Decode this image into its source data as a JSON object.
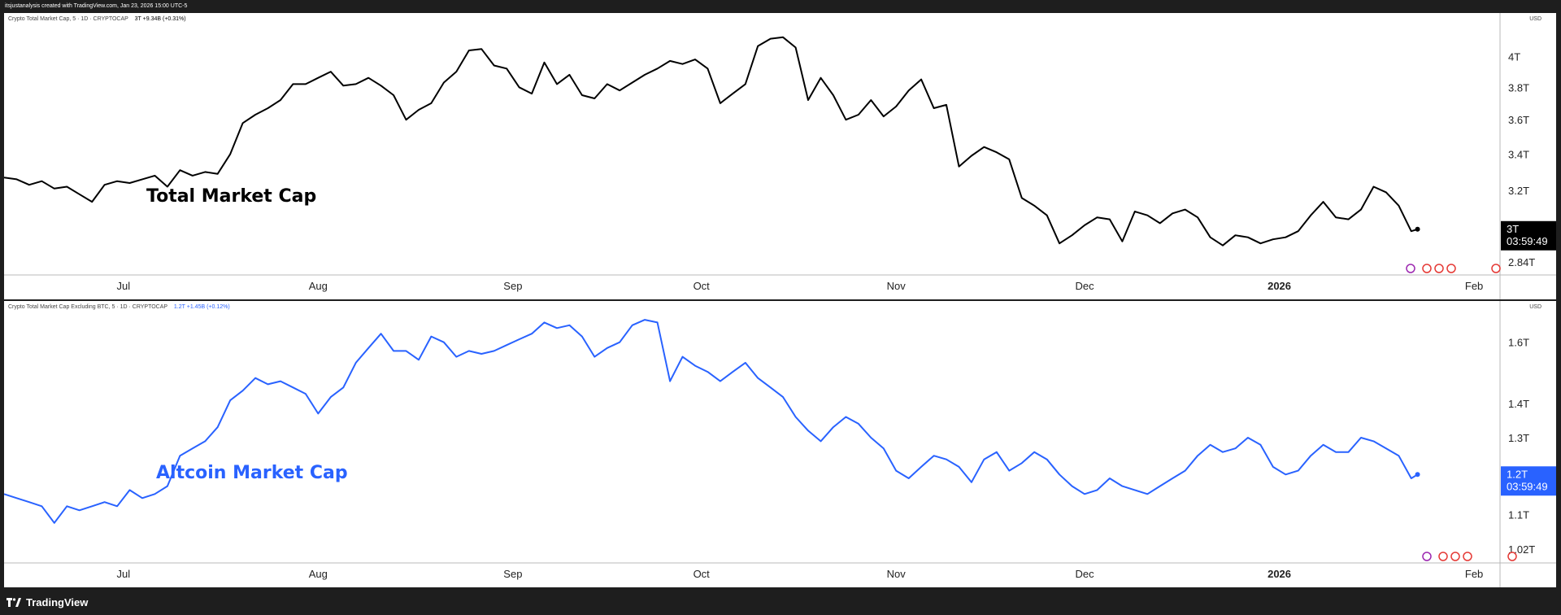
{
  "header": {
    "credit": "itsjustanalysis created with TradingView.com, Jan 23, 2026 15:00 UTC-5"
  },
  "footer": {
    "brand": "TradingView"
  },
  "colors": {
    "panel1_line": "#000000",
    "panel2_line": "#2962ff",
    "badge1": "#000000",
    "badge2": "#2962ff"
  },
  "panels": [
    {
      "legend_title": "Crypto Total Market Cap, 5 · 1D · CRYPTOCAP",
      "legend_value": "3T",
      "legend_change": "+9.34B (+0.31%)",
      "currency": "USD",
      "overlay_label": "Total Market Cap",
      "price_badge": {
        "value": "3T",
        "countdown": "03:59:49"
      },
      "y_ticks": [
        "4T",
        "3.8T",
        "3.6T",
        "3.4T",
        "3.2T",
        "2.84T"
      ],
      "x_ticks": [
        "Jul",
        "Aug",
        "Sep",
        "Oct",
        "Nov",
        "Dec",
        "2026",
        "Feb"
      ]
    },
    {
      "legend_title": "Crypto Total Market Cap Excluding BTC, 5 · 1D · CRYPTOCAP",
      "legend_value": "1.2T",
      "legend_change": "+1.45B (+0.12%)",
      "currency": "USD",
      "overlay_label": "Altcoin Market Cap",
      "price_badge": {
        "value": "1.2T",
        "countdown": "03:59:49"
      },
      "y_ticks": [
        "1.6T",
        "1.4T",
        "1.3T",
        "1.2T",
        "1.1T",
        "1.02T"
      ],
      "x_ticks": [
        "Jul",
        "Aug",
        "Sep",
        "Oct",
        "Nov",
        "Dec",
        "2026",
        "Feb"
      ]
    }
  ],
  "chart_data": [
    {
      "type": "line",
      "title": "Crypto Total Market Cap",
      "ylabel": "USD",
      "y_scale": "log",
      "x_range": [
        "2025-06-12",
        "2026-02-05"
      ],
      "ylim": [
        2.78,
        4.3
      ],
      "y_unit": "T",
      "series": [
        {
          "name": "Crypto Total Market Cap",
          "points": [
            [
              "2025-06-12",
              3.27
            ],
            [
              "2025-06-14",
              3.26
            ],
            [
              "2025-06-16",
              3.23
            ],
            [
              "2025-06-18",
              3.25
            ],
            [
              "2025-06-20",
              3.21
            ],
            [
              "2025-06-22",
              3.22
            ],
            [
              "2025-06-24",
              3.18
            ],
            [
              "2025-06-26",
              3.14
            ],
            [
              "2025-06-28",
              3.23
            ],
            [
              "2025-06-30",
              3.25
            ],
            [
              "2025-07-02",
              3.24
            ],
            [
              "2025-07-04",
              3.26
            ],
            [
              "2025-07-06",
              3.28
            ],
            [
              "2025-07-08",
              3.22
            ],
            [
              "2025-07-10",
              3.31
            ],
            [
              "2025-07-12",
              3.28
            ],
            [
              "2025-07-14",
              3.3
            ],
            [
              "2025-07-16",
              3.29
            ],
            [
              "2025-07-18",
              3.4
            ],
            [
              "2025-07-20",
              3.58
            ],
            [
              "2025-07-22",
              3.63
            ],
            [
              "2025-07-24",
              3.67
            ],
            [
              "2025-07-26",
              3.72
            ],
            [
              "2025-07-28",
              3.82
            ],
            [
              "2025-07-30",
              3.82
            ],
            [
              "2025-08-01",
              3.86
            ],
            [
              "2025-08-03",
              3.9
            ],
            [
              "2025-08-05",
              3.81
            ],
            [
              "2025-08-07",
              3.82
            ],
            [
              "2025-08-09",
              3.86
            ],
            [
              "2025-08-11",
              3.81
            ],
            [
              "2025-08-13",
              3.75
            ],
            [
              "2025-08-15",
              3.6
            ],
            [
              "2025-08-17",
              3.66
            ],
            [
              "2025-08-19",
              3.7
            ],
            [
              "2025-08-21",
              3.83
            ],
            [
              "2025-08-23",
              3.9
            ],
            [
              "2025-08-25",
              4.04
            ],
            [
              "2025-08-27",
              4.05
            ],
            [
              "2025-08-29",
              3.94
            ],
            [
              "2025-08-31",
              3.92
            ],
            [
              "2025-09-02",
              3.8
            ],
            [
              "2025-09-04",
              3.76
            ],
            [
              "2025-09-06",
              3.96
            ],
            [
              "2025-09-08",
              3.82
            ],
            [
              "2025-09-10",
              3.88
            ],
            [
              "2025-09-12",
              3.75
            ],
            [
              "2025-09-14",
              3.73
            ],
            [
              "2025-09-16",
              3.82
            ],
            [
              "2025-09-18",
              3.78
            ],
            [
              "2025-09-20",
              3.83
            ],
            [
              "2025-09-22",
              3.88
            ],
            [
              "2025-09-24",
              3.92
            ],
            [
              "2025-09-26",
              3.97
            ],
            [
              "2025-09-28",
              3.95
            ],
            [
              "2025-09-30",
              3.98
            ],
            [
              "2025-10-02",
              3.92
            ],
            [
              "2025-10-04",
              3.7
            ],
            [
              "2025-10-06",
              3.76
            ],
            [
              "2025-10-08",
              3.82
            ],
            [
              "2025-10-10",
              4.07
            ],
            [
              "2025-10-12",
              4.12
            ],
            [
              "2025-10-14",
              4.13
            ],
            [
              "2025-10-16",
              4.06
            ],
            [
              "2025-10-18",
              3.72
            ],
            [
              "2025-10-20",
              3.86
            ],
            [
              "2025-10-22",
              3.75
            ],
            [
              "2025-10-24",
              3.6
            ],
            [
              "2025-10-26",
              3.63
            ],
            [
              "2025-10-28",
              3.72
            ],
            [
              "2025-10-30",
              3.62
            ],
            [
              "2025-11-01",
              3.68
            ],
            [
              "2025-11-03",
              3.78
            ],
            [
              "2025-11-05",
              3.85
            ],
            [
              "2025-11-07",
              3.67
            ],
            [
              "2025-11-09",
              3.69
            ],
            [
              "2025-11-11",
              3.33
            ],
            [
              "2025-11-13",
              3.39
            ],
            [
              "2025-11-15",
              3.44
            ],
            [
              "2025-11-17",
              3.41
            ],
            [
              "2025-11-19",
              3.37
            ],
            [
              "2025-11-21",
              3.16
            ],
            [
              "2025-11-23",
              3.12
            ],
            [
              "2025-11-25",
              3.07
            ],
            [
              "2025-11-27",
              2.93
            ],
            [
              "2025-11-29",
              2.97
            ],
            [
              "2025-12-01",
              3.02
            ],
            [
              "2025-12-03",
              3.06
            ],
            [
              "2025-12-05",
              3.05
            ],
            [
              "2025-12-07",
              2.94
            ],
            [
              "2025-12-09",
              3.09
            ],
            [
              "2025-12-11",
              3.07
            ],
            [
              "2025-12-13",
              3.03
            ],
            [
              "2025-12-15",
              3.08
            ],
            [
              "2025-12-17",
              3.1
            ],
            [
              "2025-12-19",
              3.06
            ],
            [
              "2025-12-21",
              2.96
            ],
            [
              "2025-12-23",
              2.92
            ],
            [
              "2025-12-25",
              2.97
            ],
            [
              "2025-12-27",
              2.96
            ],
            [
              "2025-12-29",
              2.93
            ],
            [
              "2025-12-31",
              2.95
            ],
            [
              "2026-01-02",
              2.96
            ],
            [
              "2026-01-04",
              2.99
            ],
            [
              "2026-01-06",
              3.07
            ],
            [
              "2026-01-08",
              3.14
            ],
            [
              "2026-01-10",
              3.06
            ],
            [
              "2026-01-12",
              3.05
            ],
            [
              "2026-01-14",
              3.1
            ],
            [
              "2026-01-16",
              3.22
            ],
            [
              "2026-01-18",
              3.19
            ],
            [
              "2026-01-20",
              3.12
            ],
            [
              "2026-01-22",
              2.99
            ],
            [
              "2026-01-23",
              3.0
            ]
          ]
        }
      ],
      "grid": false,
      "legend": "top-left"
    },
    {
      "type": "line",
      "title": "Crypto Total Market Cap Excluding BTC",
      "ylabel": "USD",
      "y_scale": "log",
      "x_range": [
        "2025-06-12",
        "2026-02-05"
      ],
      "ylim": [
        0.99,
        1.75
      ],
      "y_unit": "T",
      "series": [
        {
          "name": "Crypto Total Market Cap Excluding BTC",
          "points": [
            [
              "2025-06-12",
              1.15
            ],
            [
              "2025-06-14",
              1.14
            ],
            [
              "2025-06-16",
              1.13
            ],
            [
              "2025-06-18",
              1.12
            ],
            [
              "2025-06-20",
              1.08
            ],
            [
              "2025-06-22",
              1.12
            ],
            [
              "2025-06-24",
              1.11
            ],
            [
              "2025-06-26",
              1.12
            ],
            [
              "2025-06-28",
              1.13
            ],
            [
              "2025-06-30",
              1.12
            ],
            [
              "2025-07-02",
              1.16
            ],
            [
              "2025-07-04",
              1.14
            ],
            [
              "2025-07-06",
              1.15
            ],
            [
              "2025-07-08",
              1.17
            ],
            [
              "2025-07-10",
              1.25
            ],
            [
              "2025-07-12",
              1.27
            ],
            [
              "2025-07-14",
              1.29
            ],
            [
              "2025-07-16",
              1.33
            ],
            [
              "2025-07-18",
              1.41
            ],
            [
              "2025-07-20",
              1.44
            ],
            [
              "2025-07-22",
              1.48
            ],
            [
              "2025-07-24",
              1.46
            ],
            [
              "2025-07-26",
              1.47
            ],
            [
              "2025-07-28",
              1.45
            ],
            [
              "2025-07-30",
              1.43
            ],
            [
              "2025-08-01",
              1.37
            ],
            [
              "2025-08-03",
              1.42
            ],
            [
              "2025-08-05",
              1.45
            ],
            [
              "2025-08-07",
              1.53
            ],
            [
              "2025-08-09",
              1.58
            ],
            [
              "2025-08-11",
              1.63
            ],
            [
              "2025-08-13",
              1.57
            ],
            [
              "2025-08-15",
              1.57
            ],
            [
              "2025-08-17",
              1.54
            ],
            [
              "2025-08-19",
              1.62
            ],
            [
              "2025-08-21",
              1.6
            ],
            [
              "2025-08-23",
              1.55
            ],
            [
              "2025-08-25",
              1.57
            ],
            [
              "2025-08-27",
              1.56
            ],
            [
              "2025-08-29",
              1.57
            ],
            [
              "2025-08-31",
              1.59
            ],
            [
              "2025-09-02",
              1.61
            ],
            [
              "2025-09-04",
              1.63
            ],
            [
              "2025-09-06",
              1.67
            ],
            [
              "2025-09-08",
              1.65
            ],
            [
              "2025-09-10",
              1.66
            ],
            [
              "2025-09-12",
              1.62
            ],
            [
              "2025-09-14",
              1.55
            ],
            [
              "2025-09-16",
              1.58
            ],
            [
              "2025-09-18",
              1.6
            ],
            [
              "2025-09-20",
              1.66
            ],
            [
              "2025-09-22",
              1.68
            ],
            [
              "2025-09-24",
              1.67
            ],
            [
              "2025-09-26",
              1.47
            ],
            [
              "2025-09-28",
              1.55
            ],
            [
              "2025-09-30",
              1.52
            ],
            [
              "2025-10-02",
              1.5
            ],
            [
              "2025-10-04",
              1.47
            ],
            [
              "2025-10-06",
              1.5
            ],
            [
              "2025-10-08",
              1.53
            ],
            [
              "2025-10-10",
              1.48
            ],
            [
              "2025-10-12",
              1.45
            ],
            [
              "2025-10-14",
              1.42
            ],
            [
              "2025-10-16",
              1.36
            ],
            [
              "2025-10-18",
              1.32
            ],
            [
              "2025-10-20",
              1.29
            ],
            [
              "2025-10-22",
              1.33
            ],
            [
              "2025-10-24",
              1.36
            ],
            [
              "2025-10-26",
              1.34
            ],
            [
              "2025-10-28",
              1.3
            ],
            [
              "2025-10-30",
              1.27
            ],
            [
              "2025-11-01",
              1.21
            ],
            [
              "2025-11-03",
              1.19
            ],
            [
              "2025-11-05",
              1.22
            ],
            [
              "2025-11-07",
              1.25
            ],
            [
              "2025-11-09",
              1.24
            ],
            [
              "2025-11-11",
              1.22
            ],
            [
              "2025-11-13",
              1.18
            ],
            [
              "2025-11-15",
              1.24
            ],
            [
              "2025-11-17",
              1.26
            ],
            [
              "2025-11-19",
              1.21
            ],
            [
              "2025-11-21",
              1.23
            ],
            [
              "2025-11-23",
              1.26
            ],
            [
              "2025-11-25",
              1.24
            ],
            [
              "2025-11-27",
              1.2
            ],
            [
              "2025-11-29",
              1.17
            ],
            [
              "2025-12-01",
              1.15
            ],
            [
              "2025-12-03",
              1.16
            ],
            [
              "2025-12-05",
              1.19
            ],
            [
              "2025-12-07",
              1.17
            ],
            [
              "2025-12-09",
              1.16
            ],
            [
              "2025-12-11",
              1.15
            ],
            [
              "2025-12-13",
              1.17
            ],
            [
              "2025-12-15",
              1.19
            ],
            [
              "2025-12-17",
              1.21
            ],
            [
              "2025-12-19",
              1.25
            ],
            [
              "2025-12-21",
              1.28
            ],
            [
              "2025-12-23",
              1.26
            ],
            [
              "2025-12-25",
              1.27
            ],
            [
              "2025-12-27",
              1.3
            ],
            [
              "2025-12-29",
              1.28
            ],
            [
              "2025-12-31",
              1.22
            ],
            [
              "2026-01-02",
              1.2
            ],
            [
              "2026-01-04",
              1.21
            ],
            [
              "2026-01-06",
              1.25
            ],
            [
              "2026-01-08",
              1.28
            ],
            [
              "2026-01-10",
              1.26
            ],
            [
              "2026-01-12",
              1.26
            ],
            [
              "2026-01-14",
              1.3
            ],
            [
              "2026-01-16",
              1.29
            ],
            [
              "2026-01-18",
              1.27
            ],
            [
              "2026-01-20",
              1.25
            ],
            [
              "2026-01-22",
              1.19
            ],
            [
              "2026-01-23",
              1.2
            ]
          ]
        }
      ],
      "grid": false,
      "legend": "top-left"
    }
  ]
}
